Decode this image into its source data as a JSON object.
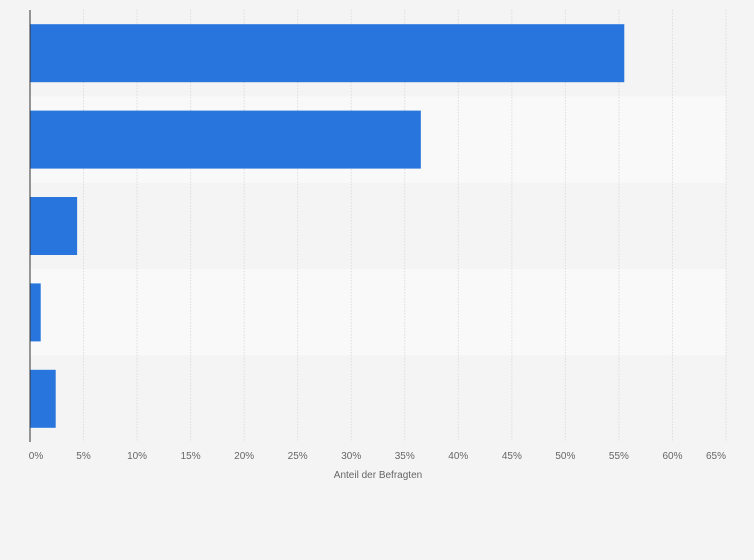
{
  "chart_data": {
    "type": "bar",
    "orientation": "horizontal",
    "categories": [
      "",
      "",
      "",
      "",
      ""
    ],
    "values": [
      55.5,
      36.5,
      4.4,
      1.0,
      2.4
    ],
    "xlabel": "Anteil der Befragten",
    "ylabel": "",
    "xlim": [
      0,
      65
    ],
    "x_ticks": [
      "0%",
      "5%",
      "10%",
      "15%",
      "20%",
      "25%",
      "30%",
      "35%",
      "40%",
      "45%",
      "50%",
      "55%",
      "60%",
      "65%"
    ],
    "grid": true,
    "legend": "none",
    "colors": {
      "bar": "#2876dd",
      "band_dark": "#f4f4f4",
      "band_light": "#f9f9f9",
      "grid": "#dddddd",
      "axis": "#333333",
      "text": "#666666"
    }
  }
}
